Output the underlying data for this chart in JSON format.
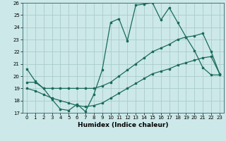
{
  "xlabel": "Humidex (Indice chaleur)",
  "bg_color": "#cce8e8",
  "grid_color": "#aacccc",
  "line_color": "#1a6b5a",
  "x_values": [
    0,
    1,
    2,
    3,
    4,
    5,
    6,
    7,
    8,
    9,
    10,
    11,
    12,
    13,
    14,
    15,
    16,
    17,
    18,
    19,
    20,
    21,
    22,
    23
  ],
  "line1": [
    20.6,
    19.6,
    19.0,
    18.1,
    17.3,
    17.2,
    17.7,
    17.1,
    18.5,
    20.5,
    24.4,
    24.7,
    22.9,
    25.8,
    25.9,
    26.0,
    24.6,
    25.6,
    24.4,
    23.2,
    22.1,
    20.7,
    20.1,
    20.1
  ],
  "line2": [
    19.5,
    19.5,
    19.0,
    19.0,
    19.0,
    19.0,
    19.0,
    19.0,
    19.0,
    19.2,
    19.5,
    20.0,
    20.5,
    21.0,
    21.5,
    22.0,
    22.3,
    22.6,
    23.0,
    23.2,
    23.3,
    23.5,
    22.0,
    20.2
  ],
  "line3": [
    19.0,
    18.8,
    18.5,
    18.2,
    18.0,
    17.8,
    17.6,
    17.5,
    17.6,
    17.8,
    18.2,
    18.6,
    19.0,
    19.4,
    19.8,
    20.2,
    20.4,
    20.6,
    20.9,
    21.1,
    21.3,
    21.5,
    21.6,
    20.2
  ],
  "ylim": [
    17,
    26
  ],
  "xlim": [
    -0.5,
    23.5
  ],
  "yticks": [
    17,
    18,
    19,
    20,
    21,
    22,
    23,
    24,
    25,
    26
  ],
  "xticks": [
    0,
    1,
    2,
    3,
    4,
    5,
    6,
    7,
    8,
    9,
    10,
    11,
    12,
    13,
    14,
    15,
    16,
    17,
    18,
    19,
    20,
    21,
    22,
    23
  ],
  "marker_size": 2.0,
  "line_width": 0.9,
  "tick_fontsize": 5.0,
  "xlabel_fontsize": 6.5
}
